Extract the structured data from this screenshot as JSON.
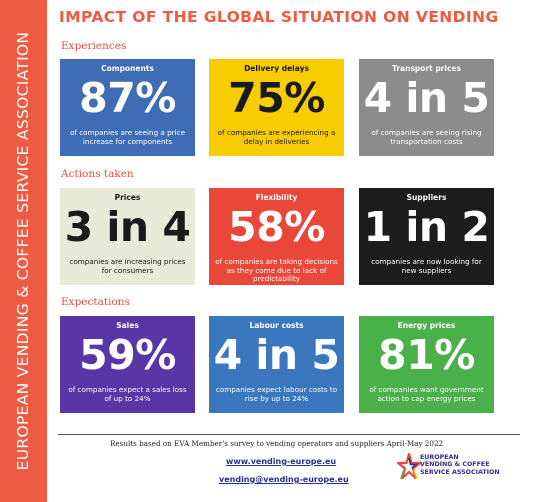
{
  "sidebar": {
    "text": "EUROPEAN VENDING & COFFEE SERVICE ASSOCIATION"
  },
  "title": "IMPACT OF THE GLOBAL SITUATION ON VENDING",
  "sections": [
    {
      "label": "Experiences",
      "cards": [
        {
          "title": "Components",
          "big": "87%",
          "desc": "of companies are seeing a price increase for components",
          "bg": "#3e6db5",
          "fg": "#ffffff"
        },
        {
          "title": "Delivery delays",
          "big": "75%",
          "desc": "of companies are experiencing a delay in deliveries",
          "bg": "#f7cc00",
          "fg": "#1a1a1a"
        },
        {
          "title": "Transport prices",
          "big": "4 in 5",
          "desc": "of companies are seeing rising transportation costs",
          "bg": "#8c8c8c",
          "fg": "#ffffff"
        }
      ]
    },
    {
      "label": "Actions taken",
      "cards": [
        {
          "title": "Prices",
          "big": "3 in 4",
          "desc": "companies are increasing prices for consumers",
          "bg": "#e8ebd7",
          "fg": "#1a1a1a"
        },
        {
          "title": "Flexibility",
          "big": "58%",
          "desc": "of companies are taking decisions as they come due to lack of predictability",
          "bg": "#e8473a",
          "fg": "#ffffff"
        },
        {
          "title": "Suppliers",
          "big": "1 in 2",
          "desc": "companies are now looking for new suppliers",
          "bg": "#1c1c1c",
          "fg": "#ffffff"
        }
      ]
    },
    {
      "label": "Expectations",
      "cards": [
        {
          "title": "Sales",
          "big": "59%",
          "desc": "of companies expect a sales loss of up to 24%",
          "bg": "#5a35a6",
          "fg": "#ffffff"
        },
        {
          "title": "Labour costs",
          "big": "4 in 5",
          "desc": "companies expect labour costs to rise by up to 24%",
          "bg": "#3a77bf",
          "fg": "#ffffff"
        },
        {
          "title": "Energy prices",
          "big": "81%",
          "desc": "of companies want government action to cap energy prices",
          "bg": "#4ab04a",
          "fg": "#ffffff"
        }
      ]
    }
  ],
  "footer": {
    "note": "Results based on EVA Member's survey to vending operators and suppliers April-May 2022",
    "website": "www.vending-europe.eu",
    "email": "vending@vending-europe.eu",
    "logo_lines": [
      "EUROPEAN",
      "VENDING & COFFEE",
      "SERVICE ASSOCIATION"
    ]
  }
}
